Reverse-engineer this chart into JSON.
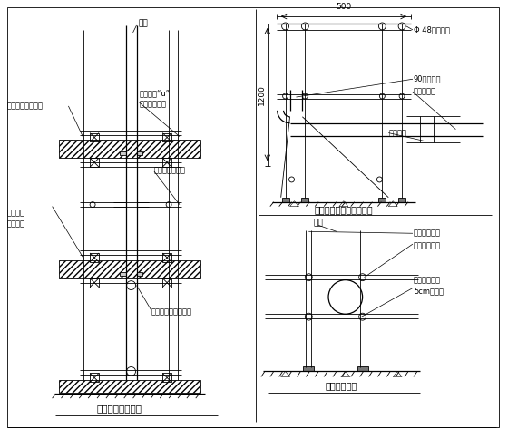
{
  "bg_color": "#ffffff",
  "line_color": "#000000",
  "title_left": "泵管穿楼板固定图",
  "title_right_top": "水平泵管垂直上弯处固定",
  "title_right_bot": "水平泵管固定",
  "dim_500": "500",
  "dim_1200": "1200",
  "labels": {
    "pump_pipe": "泵管",
    "wood_wedge1": "木楞子将泵管固定",
    "wood_wedge2": "木楞子将\n泵管固定",
    "scaffold_u": "架子管和“u”\n托与楼板顶紧",
    "scaffold_wood": "架子上下垫方木",
    "scaffold_clamp": "架子管托住泵管卡子",
    "phi48": "Φ 48钒管支架",
    "elbow90": "90度弯头管",
    "horiz_support": "水平管支撑",
    "steel_frame": "钒管支架",
    "pump_pipe2": "泵管",
    "pipe_clamp": "管卡附近掃设",
    "steel_fix": "钒管支架固定",
    "floor_pad": "砷楼面上需加\n5cm厚垫板"
  }
}
